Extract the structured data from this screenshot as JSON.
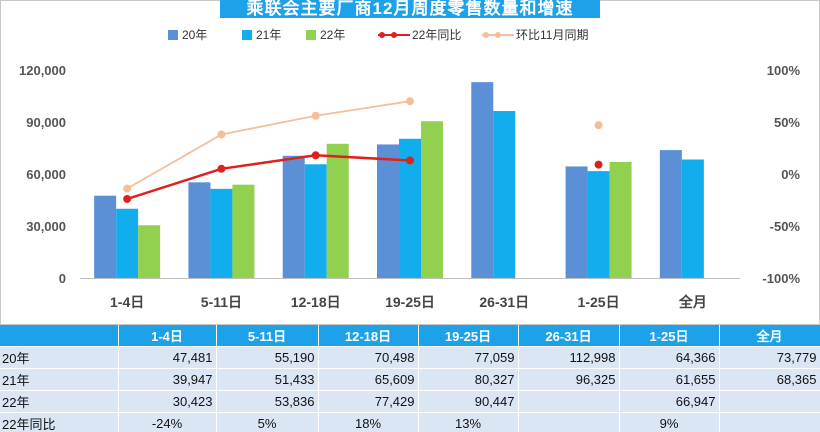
{
  "title": "乘联会主要厂商12月周度零售数量和增速",
  "legend": {
    "items": [
      {
        "label": "20年",
        "kind": "bar",
        "color": "#5b8fd6"
      },
      {
        "label": "21年",
        "kind": "bar",
        "color": "#12adec"
      },
      {
        "label": "22年",
        "kind": "bar",
        "color": "#92d050"
      },
      {
        "label": "22年同比",
        "kind": "line",
        "color": "#e0201c"
      },
      {
        "label": "环比11月同期",
        "kind": "line",
        "color": "#f7bd97"
      }
    ]
  },
  "chart_data": {
    "type": "bar",
    "title": "乘联会主要厂商12月周度零售数量和增速",
    "categories": [
      "1-4日",
      "5-11日",
      "12-18日",
      "19-25日",
      "26-31日",
      "1-25日",
      "全月"
    ],
    "series": [
      {
        "name": "20年",
        "type": "bar",
        "axis": "left",
        "color": "#5b8fd6",
        "values": [
          47481,
          55190,
          70498,
          77059,
          112998,
          64366,
          73779
        ]
      },
      {
        "name": "21年",
        "type": "bar",
        "axis": "left",
        "color": "#12adec",
        "values": [
          39947,
          51433,
          65609,
          80327,
          96325,
          61655,
          68365
        ]
      },
      {
        "name": "22年",
        "type": "bar",
        "axis": "left",
        "color": "#92d050",
        "values": [
          30423,
          53836,
          77429,
          90447,
          null,
          66947,
          null
        ]
      },
      {
        "name": "22年同比",
        "type": "line",
        "axis": "right",
        "color": "#e0201c",
        "values": [
          -24,
          5,
          18,
          13,
          null,
          9,
          null
        ]
      },
      {
        "name": "环比11月同期",
        "type": "line",
        "axis": "right",
        "color": "#f7bd97",
        "values": [
          -14,
          38,
          56,
          70,
          null,
          47,
          null
        ]
      }
    ],
    "left_axis": {
      "min": 0,
      "max": 120000,
      "ticks": [
        "0",
        "30,000",
        "60,000",
        "90,000",
        "120,000"
      ]
    },
    "right_axis": {
      "min": -100,
      "max": 100,
      "unit": "%",
      "ticks": [
        "-100%",
        "-50%",
        "0%",
        "50%",
        "100%"
      ]
    },
    "legend_position": "top",
    "grid": false
  },
  "table": {
    "headers": [
      "",
      "1-4日",
      "5-11日",
      "12-18日",
      "19-25日",
      "26-31日",
      "1-25日",
      "全月"
    ],
    "rows": [
      {
        "label": "20年",
        "cells": [
          "47,481",
          "55,190",
          "70,498",
          "77,059",
          "112,998",
          "64,366",
          "73,779"
        ]
      },
      {
        "label": "21年",
        "cells": [
          "39,947",
          "51,433",
          "65,609",
          "80,327",
          "96,325",
          "61,655",
          "68,365"
        ]
      },
      {
        "label": "22年",
        "cells": [
          "30,423",
          "53,836",
          "77,429",
          "90,447",
          "",
          "66,947",
          ""
        ]
      },
      {
        "label": "22年同比",
        "cells": [
          "-24%",
          "5%",
          "18%",
          "13%",
          "",
          "9%",
          ""
        ]
      }
    ]
  }
}
